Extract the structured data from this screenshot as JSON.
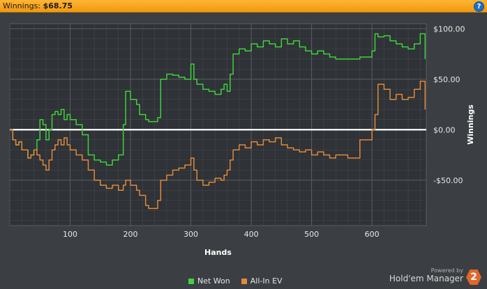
{
  "header": {
    "label": "Winnings:",
    "value": "$68.75",
    "help_icon": "question-icon"
  },
  "chart_data": {
    "type": "line",
    "xlabel": "Hands",
    "ylabel": "Winnings",
    "xlim": [
      0,
      690
    ],
    "ylim": [
      -95,
      105
    ],
    "x_ticks": [
      100,
      200,
      300,
      400,
      500,
      600
    ],
    "y_ticks": [
      -50,
      0,
      50,
      100
    ],
    "y_tick_labels": [
      "-$50.00",
      "$0.00",
      "$50.00",
      "$100.00"
    ],
    "grid": true,
    "zero_line": true,
    "series": [
      {
        "name": "Net Won",
        "color": "#3fd23f",
        "x": [
          0,
          5,
          10,
          15,
          20,
          30,
          35,
          40,
          45,
          50,
          55,
          60,
          65,
          70,
          75,
          80,
          85,
          90,
          95,
          100,
          110,
          120,
          130,
          140,
          150,
          160,
          170,
          180,
          188,
          192,
          200,
          210,
          215,
          225,
          230,
          245,
          250,
          260,
          270,
          280,
          290,
          300,
          305,
          310,
          320,
          330,
          340,
          350,
          355,
          360,
          365,
          370,
          380,
          390,
          400,
          410,
          420,
          430,
          440,
          450,
          460,
          470,
          480,
          490,
          500,
          510,
          520,
          530,
          540,
          560,
          580,
          600,
          605,
          610,
          620,
          630,
          640,
          650,
          660,
          670,
          680,
          688
        ],
        "y": [
          0,
          -10,
          -15,
          -12,
          -20,
          -28,
          -25,
          -20,
          -10,
          10,
          5,
          -10,
          0,
          15,
          18,
          15,
          20,
          10,
          15,
          10,
          5,
          -5,
          -25,
          -30,
          -32,
          -35,
          -30,
          -25,
          5,
          38,
          30,
          25,
          15,
          10,
          8,
          12,
          50,
          55,
          54,
          52,
          50,
          65,
          50,
          45,
          40,
          38,
          35,
          40,
          45,
          38,
          55,
          75,
          80,
          78,
          85,
          82,
          88,
          85,
          82,
          90,
          85,
          88,
          82,
          78,
          75,
          78,
          75,
          72,
          70,
          70,
          72,
          78,
          95,
          92,
          93,
          88,
          85,
          82,
          80,
          85,
          95,
          70
        ]
      },
      {
        "name": "All-In EV",
        "color": "#e08a3c",
        "x": [
          0,
          5,
          10,
          15,
          20,
          30,
          35,
          40,
          45,
          50,
          55,
          60,
          65,
          70,
          75,
          80,
          85,
          90,
          95,
          100,
          110,
          120,
          130,
          140,
          150,
          160,
          170,
          180,
          188,
          192,
          200,
          210,
          215,
          225,
          230,
          245,
          250,
          260,
          270,
          280,
          290,
          300,
          305,
          310,
          320,
          330,
          340,
          350,
          355,
          360,
          365,
          370,
          380,
          390,
          400,
          410,
          420,
          430,
          440,
          450,
          460,
          470,
          480,
          490,
          500,
          510,
          520,
          530,
          540,
          560,
          580,
          600,
          605,
          610,
          620,
          630,
          640,
          650,
          660,
          670,
          680,
          688
        ],
        "y": [
          0,
          -10,
          -15,
          -12,
          -20,
          -28,
          -25,
          -20,
          -25,
          -30,
          -35,
          -40,
          -30,
          -20,
          -15,
          -10,
          -15,
          -8,
          -15,
          -20,
          -25,
          -30,
          -40,
          -50,
          -55,
          -58,
          -55,
          -60,
          -55,
          -50,
          -55,
          -60,
          -65,
          -75,
          -78,
          -70,
          -50,
          -45,
          -40,
          -38,
          -35,
          -28,
          -40,
          -50,
          -55,
          -52,
          -48,
          -50,
          -45,
          -40,
          -30,
          -20,
          -15,
          -18,
          -12,
          -15,
          -10,
          -12,
          -8,
          -15,
          -18,
          -20,
          -22,
          -20,
          -25,
          -22,
          -25,
          -28,
          -25,
          -28,
          -10,
          0,
          15,
          45,
          40,
          30,
          35,
          30,
          32,
          40,
          48,
          20
        ]
      }
    ]
  },
  "legend": [
    {
      "label": "Net Won",
      "color": "#3fd23f"
    },
    {
      "label": "All-In EV",
      "color": "#e08a3c"
    }
  ],
  "brand": {
    "powered": "Powered by",
    "name": "Hold'em Manager",
    "logo": "2"
  }
}
